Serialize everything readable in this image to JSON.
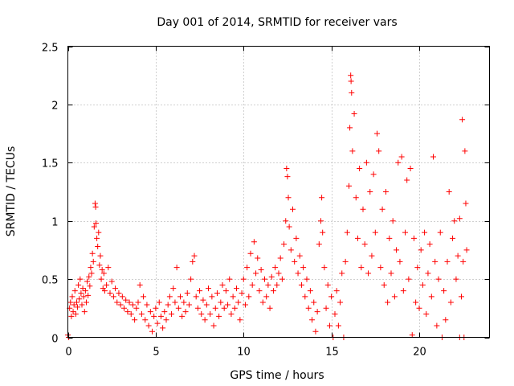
{
  "chart_data": {
    "type": "scatter",
    "title": "Day 001 of 2014, SRMTID for receiver vars",
    "xlabel": "GPS time / hours",
    "ylabel": "SRMTID / TECUs",
    "xlim": [
      0,
      24
    ],
    "ylim": [
      0,
      2.5
    ],
    "xticks": [
      0,
      5,
      10,
      15,
      20
    ],
    "yticks": [
      0,
      0.5,
      1,
      1.5,
      2,
      2.5
    ],
    "xtick_labels": [
      "0",
      "5",
      "10",
      "15",
      "20"
    ],
    "ytick_labels": [
      "0",
      "0.5",
      "1",
      "1.5",
      "2",
      "2.5"
    ],
    "grid": true,
    "marker": "+",
    "color": "#ff0000",
    "series": [
      {
        "name": "SRMTID",
        "points": [
          [
            0.0,
            0.02
          ],
          [
            0.05,
            0.0
          ],
          [
            0.1,
            0.25
          ],
          [
            0.15,
            0.3
          ],
          [
            0.2,
            0.18
          ],
          [
            0.25,
            0.35
          ],
          [
            0.3,
            0.22
          ],
          [
            0.35,
            0.28
          ],
          [
            0.4,
            0.4
          ],
          [
            0.45,
            0.2
          ],
          [
            0.5,
            0.3
          ],
          [
            0.55,
            0.26
          ],
          [
            0.6,
            0.45
          ],
          [
            0.65,
            0.33
          ],
          [
            0.7,
            0.5
          ],
          [
            0.75,
            0.38
          ],
          [
            0.8,
            0.28
          ],
          [
            0.85,
            0.42
          ],
          [
            0.9,
            0.35
          ],
          [
            0.95,
            0.22
          ],
          [
            1.0,
            0.4
          ],
          [
            1.05,
            0.3
          ],
          [
            1.1,
            0.48
          ],
          [
            1.15,
            0.36
          ],
          [
            1.2,
            0.52
          ],
          [
            1.25,
            0.44
          ],
          [
            1.3,
            0.6
          ],
          [
            1.35,
            0.55
          ],
          [
            1.4,
            0.72
          ],
          [
            1.45,
            0.65
          ],
          [
            1.5,
            0.95
          ],
          [
            1.55,
            1.15
          ],
          [
            1.58,
            1.12
          ],
          [
            1.6,
            0.98
          ],
          [
            1.65,
            0.85
          ],
          [
            1.7,
            0.78
          ],
          [
            1.75,
            0.9
          ],
          [
            1.8,
            0.62
          ],
          [
            1.85,
            0.7
          ],
          [
            1.9,
            0.5
          ],
          [
            1.95,
            0.58
          ],
          [
            2.0,
            0.42
          ],
          [
            2.05,
            0.55
          ],
          [
            2.1,
            0.4
          ],
          [
            2.2,
            0.45
          ],
          [
            2.3,
            0.6
          ],
          [
            2.4,
            0.38
          ],
          [
            2.5,
            0.48
          ],
          [
            2.6,
            0.35
          ],
          [
            2.7,
            0.42
          ],
          [
            2.8,
            0.3
          ],
          [
            2.9,
            0.38
          ],
          [
            3.0,
            0.28
          ],
          [
            3.1,
            0.35
          ],
          [
            3.2,
            0.25
          ],
          [
            3.3,
            0.32
          ],
          [
            3.4,
            0.22
          ],
          [
            3.5,
            0.3
          ],
          [
            3.6,
            0.2
          ],
          [
            3.7,
            0.28
          ],
          [
            3.8,
            0.15
          ],
          [
            3.9,
            0.25
          ],
          [
            4.0,
            0.3
          ],
          [
            4.1,
            0.45
          ],
          [
            4.2,
            0.2
          ],
          [
            4.3,
            0.35
          ],
          [
            4.4,
            0.15
          ],
          [
            4.5,
            0.28
          ],
          [
            4.6,
            0.1
          ],
          [
            4.7,
            0.22
          ],
          [
            4.8,
            0.05
          ],
          [
            4.9,
            0.18
          ],
          [
            5.0,
            0.25
          ],
          [
            5.1,
            0.12
          ],
          [
            5.2,
            0.3
          ],
          [
            5.3,
            0.18
          ],
          [
            5.4,
            0.08
          ],
          [
            5.5,
            0.22
          ],
          [
            5.6,
            0.15
          ],
          [
            5.7,
            0.28
          ],
          [
            5.8,
            0.35
          ],
          [
            5.9,
            0.2
          ],
          [
            6.0,
            0.42
          ],
          [
            6.1,
            0.3
          ],
          [
            6.2,
            0.6
          ],
          [
            6.3,
            0.25
          ],
          [
            6.4,
            0.35
          ],
          [
            6.5,
            0.18
          ],
          [
            6.6,
            0.3
          ],
          [
            6.7,
            0.22
          ],
          [
            6.8,
            0.38
          ],
          [
            6.9,
            0.28
          ],
          [
            7.0,
            0.5
          ],
          [
            7.1,
            0.65
          ],
          [
            7.2,
            0.7
          ],
          [
            7.3,
            0.35
          ],
          [
            7.4,
            0.25
          ],
          [
            7.5,
            0.4
          ],
          [
            7.6,
            0.2
          ],
          [
            7.7,
            0.32
          ],
          [
            7.8,
            0.15
          ],
          [
            7.9,
            0.28
          ],
          [
            8.0,
            0.42
          ],
          [
            8.1,
            0.2
          ],
          [
            8.2,
            0.35
          ],
          [
            8.3,
            0.1
          ],
          [
            8.4,
            0.25
          ],
          [
            8.5,
            0.38
          ],
          [
            8.6,
            0.18
          ],
          [
            8.7,
            0.3
          ],
          [
            8.8,
            0.45
          ],
          [
            8.9,
            0.25
          ],
          [
            9.0,
            0.4
          ],
          [
            9.1,
            0.28
          ],
          [
            9.2,
            0.5
          ],
          [
            9.3,
            0.2
          ],
          [
            9.4,
            0.35
          ],
          [
            9.5,
            0.25
          ],
          [
            9.6,
            0.42
          ],
          [
            9.7,
            0.3
          ],
          [
            9.8,
            0.15
          ],
          [
            9.9,
            0.38
          ],
          [
            10.0,
            0.5
          ],
          [
            10.1,
            0.28
          ],
          [
            10.2,
            0.6
          ],
          [
            10.3,
            0.35
          ],
          [
            10.4,
            0.72
          ],
          [
            10.5,
            0.45
          ],
          [
            10.6,
            0.82
          ],
          [
            10.7,
            0.55
          ],
          [
            10.8,
            0.68
          ],
          [
            10.9,
            0.4
          ],
          [
            11.0,
            0.58
          ],
          [
            11.1,
            0.3
          ],
          [
            11.2,
            0.5
          ],
          [
            11.3,
            0.35
          ],
          [
            11.4,
            0.45
          ],
          [
            11.5,
            0.25
          ],
          [
            11.6,
            0.52
          ],
          [
            11.7,
            0.4
          ],
          [
            11.8,
            0.6
          ],
          [
            11.9,
            0.45
          ],
          [
            12.0,
            0.55
          ],
          [
            12.1,
            0.68
          ],
          [
            12.2,
            0.5
          ],
          [
            12.3,
            0.8
          ],
          [
            12.4,
            1.0
          ],
          [
            12.45,
            1.45
          ],
          [
            12.5,
            1.38
          ],
          [
            12.55,
            1.2
          ],
          [
            12.6,
            0.95
          ],
          [
            12.7,
            0.75
          ],
          [
            12.8,
            1.1
          ],
          [
            12.9,
            0.65
          ],
          [
            13.0,
            0.85
          ],
          [
            13.1,
            0.55
          ],
          [
            13.2,
            0.7
          ],
          [
            13.3,
            0.45
          ],
          [
            13.4,
            0.6
          ],
          [
            13.5,
            0.35
          ],
          [
            13.6,
            0.5
          ],
          [
            13.7,
            0.25
          ],
          [
            13.8,
            0.4
          ],
          [
            13.9,
            0.15
          ],
          [
            14.0,
            0.3
          ],
          [
            14.1,
            0.05
          ],
          [
            14.2,
            0.22
          ],
          [
            14.3,
            0.8
          ],
          [
            14.4,
            1.0
          ],
          [
            14.45,
            1.2
          ],
          [
            14.5,
            0.9
          ],
          [
            14.6,
            0.6
          ],
          [
            14.7,
            0.25
          ],
          [
            14.8,
            0.45
          ],
          [
            14.9,
            0.1
          ],
          [
            15.0,
            0.35
          ],
          [
            15.1,
            0.0
          ],
          [
            15.2,
            0.2
          ],
          [
            15.3,
            0.4
          ],
          [
            15.4,
            0.1
          ],
          [
            15.5,
            0.3
          ],
          [
            15.6,
            0.55
          ],
          [
            15.7,
            0.0
          ],
          [
            15.8,
            0.65
          ],
          [
            15.9,
            0.9
          ],
          [
            16.0,
            1.3
          ],
          [
            16.05,
            1.8
          ],
          [
            16.1,
            2.25
          ],
          [
            16.12,
            2.2
          ],
          [
            16.15,
            2.1
          ],
          [
            16.2,
            1.6
          ],
          [
            16.3,
            1.92
          ],
          [
            16.4,
            1.2
          ],
          [
            16.5,
            0.85
          ],
          [
            16.6,
            1.45
          ],
          [
            16.7,
            0.6
          ],
          [
            16.8,
            1.1
          ],
          [
            16.9,
            0.8
          ],
          [
            17.0,
            1.5
          ],
          [
            17.1,
            0.55
          ],
          [
            17.2,
            1.25
          ],
          [
            17.3,
            0.7
          ],
          [
            17.4,
            1.4
          ],
          [
            17.5,
            0.9
          ],
          [
            17.6,
            1.75
          ],
          [
            17.7,
            1.6
          ],
          [
            17.8,
            0.6
          ],
          [
            17.9,
            1.1
          ],
          [
            18.0,
            0.45
          ],
          [
            18.1,
            1.25
          ],
          [
            18.2,
            0.3
          ],
          [
            18.3,
            0.85
          ],
          [
            18.4,
            0.55
          ],
          [
            18.5,
            1.0
          ],
          [
            18.6,
            0.35
          ],
          [
            18.7,
            0.75
          ],
          [
            18.8,
            1.5
          ],
          [
            18.9,
            0.65
          ],
          [
            19.0,
            1.55
          ],
          [
            19.1,
            0.4
          ],
          [
            19.2,
            0.9
          ],
          [
            19.3,
            1.35
          ],
          [
            19.4,
            0.5
          ],
          [
            19.5,
            1.45
          ],
          [
            19.6,
            0.02
          ],
          [
            19.7,
            0.85
          ],
          [
            19.8,
            0.3
          ],
          [
            19.9,
            0.6
          ],
          [
            20.0,
            0.25
          ],
          [
            20.1,
            0.75
          ],
          [
            20.2,
            0.45
          ],
          [
            20.3,
            0.9
          ],
          [
            20.4,
            0.2
          ],
          [
            20.5,
            0.55
          ],
          [
            20.6,
            0.8
          ],
          [
            20.7,
            0.35
          ],
          [
            20.8,
            1.55
          ],
          [
            20.9,
            0.65
          ],
          [
            21.0,
            0.1
          ],
          [
            21.1,
            0.5
          ],
          [
            21.2,
            0.9
          ],
          [
            21.3,
            0.0
          ],
          [
            21.4,
            0.4
          ],
          [
            21.5,
            0.15
          ],
          [
            21.6,
            0.65
          ],
          [
            21.7,
            1.25
          ],
          [
            21.8,
            0.3
          ],
          [
            21.9,
            0.85
          ],
          [
            22.0,
            1.0
          ],
          [
            22.1,
            0.5
          ],
          [
            22.2,
            0.7
          ],
          [
            22.3,
            0.0
          ],
          [
            22.4,
            0.35
          ],
          [
            22.45,
            1.87
          ],
          [
            22.5,
            0.65
          ],
          [
            22.55,
            0.0
          ],
          [
            22.6,
            1.6
          ],
          [
            22.65,
            1.15
          ],
          [
            22.7,
            0.75
          ],
          [
            22.3,
            1.02
          ]
        ]
      }
    ]
  }
}
